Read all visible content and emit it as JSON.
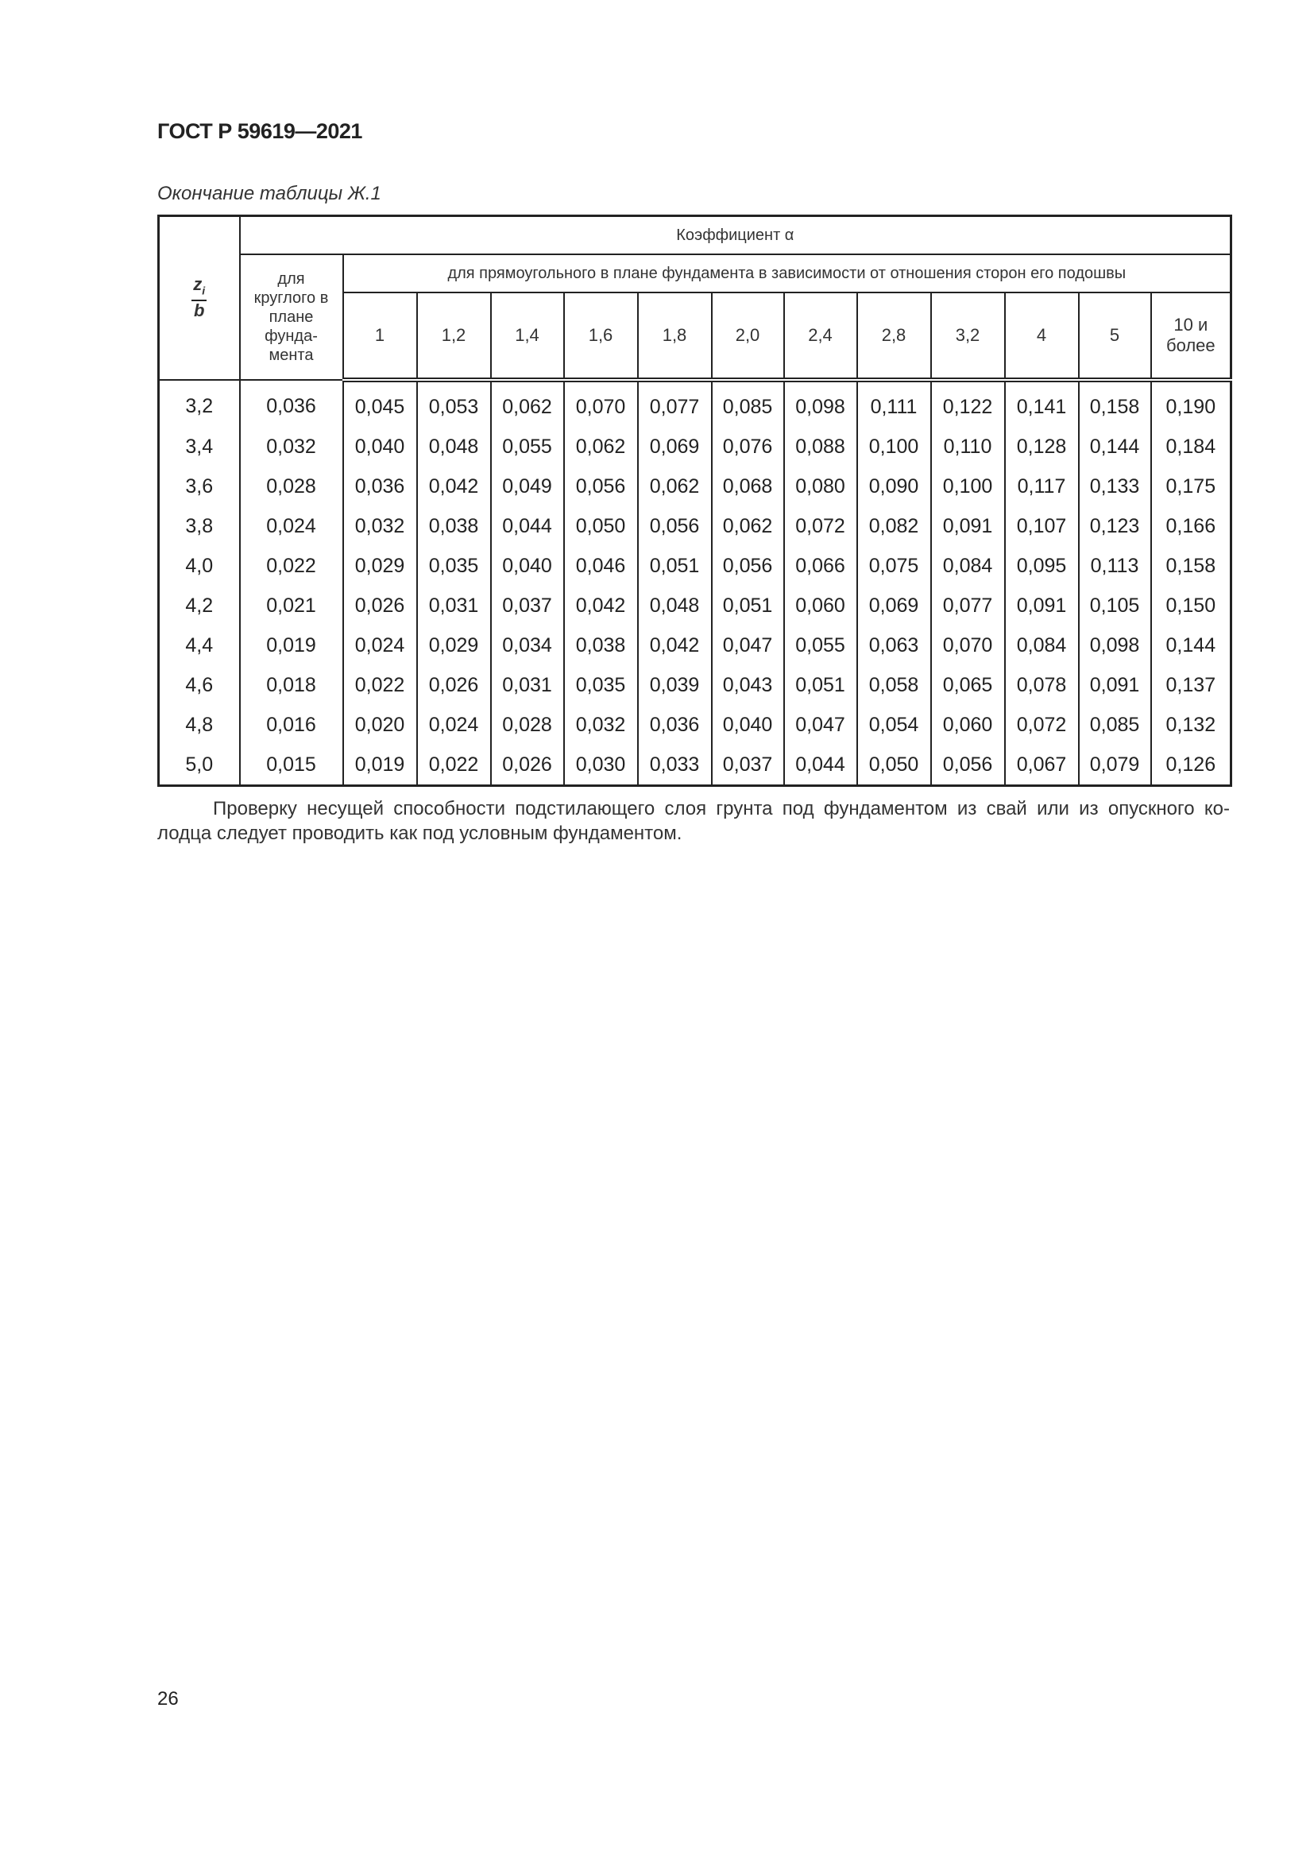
{
  "header": {
    "doc_title": "ГОСТ Р 59619—2021"
  },
  "caption": "Окончание таблицы Ж.1",
  "table": {
    "row_header": {
      "numerator": "z",
      "numerator_sub": "i",
      "denominator": "b"
    },
    "coef_label": "Коэффициент α",
    "circular_label": "для круглого в плане фунда-мента",
    "rect_label": "для прямоугольного в плане фундамента в зависимости от отношения сторон его подошвы",
    "ratios": [
      "1",
      "1,2",
      "1,4",
      "1,6",
      "1,8",
      "2,0",
      "2,4",
      "2,8",
      "3,2",
      "4",
      "5",
      "10 и более"
    ],
    "rows": [
      {
        "zb": "3,2",
        "circ": "0,036",
        "vals": [
          "0,045",
          "0,053",
          "0,062",
          "0,070",
          "0,077",
          "0,085",
          "0,098",
          "0,111",
          "0,122",
          "0,141",
          "0,158",
          "0,190"
        ]
      },
      {
        "zb": "3,4",
        "circ": "0,032",
        "vals": [
          "0,040",
          "0,048",
          "0,055",
          "0,062",
          "0,069",
          "0,076",
          "0,088",
          "0,100",
          "0,110",
          "0,128",
          "0,144",
          "0,184"
        ]
      },
      {
        "zb": "3,6",
        "circ": "0,028",
        "vals": [
          "0,036",
          "0,042",
          "0,049",
          "0,056",
          "0,062",
          "0,068",
          "0,080",
          "0,090",
          "0,100",
          "0,117",
          "0,133",
          "0,175"
        ]
      },
      {
        "zb": "3,8",
        "circ": "0,024",
        "vals": [
          "0,032",
          "0,038",
          "0,044",
          "0,050",
          "0,056",
          "0,062",
          "0,072",
          "0,082",
          "0,091",
          "0,107",
          "0,123",
          "0,166"
        ]
      },
      {
        "zb": "4,0",
        "circ": "0,022",
        "vals": [
          "0,029",
          "0,035",
          "0,040",
          "0,046",
          "0,051",
          "0,056",
          "0,066",
          "0,075",
          "0,084",
          "0,095",
          "0,113",
          "0,158"
        ]
      },
      {
        "zb": "4,2",
        "circ": "0,021",
        "vals": [
          "0,026",
          "0,031",
          "0,037",
          "0,042",
          "0,048",
          "0,051",
          "0,060",
          "0,069",
          "0,077",
          "0,091",
          "0,105",
          "0,150"
        ]
      },
      {
        "zb": "4,4",
        "circ": "0,019",
        "vals": [
          "0,024",
          "0,029",
          "0,034",
          "0,038",
          "0,042",
          "0,047",
          "0,055",
          "0,063",
          "0,070",
          "0,084",
          "0,098",
          "0,144"
        ]
      },
      {
        "zb": "4,6",
        "circ": "0,018",
        "vals": [
          "0,022",
          "0,026",
          "0,031",
          "0,035",
          "0,039",
          "0,043",
          "0,051",
          "0,058",
          "0,065",
          "0,078",
          "0,091",
          "0,137"
        ]
      },
      {
        "zb": "4,8",
        "circ": "0,016",
        "vals": [
          "0,020",
          "0,024",
          "0,028",
          "0,032",
          "0,036",
          "0,040",
          "0,047",
          "0,054",
          "0,060",
          "0,072",
          "0,085",
          "0,132"
        ]
      },
      {
        "zb": "5,0",
        "circ": "0,015",
        "vals": [
          "0,019",
          "0,022",
          "0,026",
          "0,030",
          "0,033",
          "0,037",
          "0,044",
          "0,050",
          "0,056",
          "0,067",
          "0,079",
          "0,126"
        ]
      }
    ]
  },
  "paragraph": {
    "line1": "Проверку несущей способности подстилающего слоя грунта под фундаментом из свай или из опускного ко-",
    "line2": "лодца следует проводить как под условным фундаментом."
  },
  "page_number": "26"
}
